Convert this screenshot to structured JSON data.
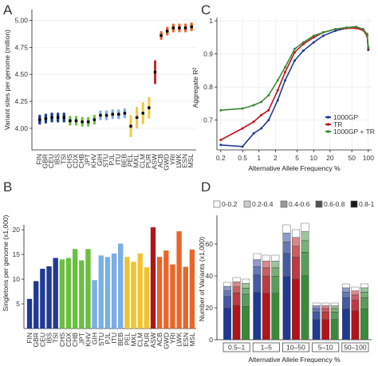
{
  "panels": {
    "A": {
      "letter": "A",
      "ylabel": "Variant sites per genome (million)",
      "yticks": [
        4.0,
        4.25,
        4.5,
        4.75,
        5.0
      ],
      "ytick_labels": [
        "4.00",
        "4.25",
        "4.50",
        "4.75",
        "5.00"
      ],
      "ylim": [
        3.8,
        5.1
      ],
      "populations": [
        "FIN",
        "GBR",
        "CEU",
        "IBS",
        "TSI",
        "CHS",
        "CDX",
        "CHB",
        "JPT",
        "KHV",
        "GIH",
        "STU",
        "PJL",
        "ITU",
        "BEB",
        "PEL",
        "MXL",
        "CLM",
        "PUR",
        "ASW",
        "ACB",
        "GWD",
        "YRI",
        "LWK",
        "ESN",
        "MSL"
      ],
      "groups": [
        {
          "color": "#1f3a93",
          "pops": [
            "FIN",
            "GBR",
            "CEU",
            "IBS",
            "TSI"
          ],
          "means": [
            4.08,
            4.09,
            4.1,
            4.1,
            4.1
          ]
        },
        {
          "color": "#6abf40",
          "pops": [
            "CHS",
            "CDX",
            "CHB",
            "JPT",
            "KHV"
          ],
          "means": [
            4.07,
            4.07,
            4.06,
            4.06,
            4.08
          ]
        },
        {
          "color": "#7aaee8",
          "pops": [
            "GIH",
            "STU",
            "PJL",
            "ITU",
            "BEB"
          ],
          "means": [
            4.12,
            4.12,
            4.13,
            4.13,
            4.14
          ]
        },
        {
          "color": "#f0c330",
          "pops": [
            "PEL",
            "MXL",
            "CLM",
            "PUR"
          ],
          "means": [
            4.02,
            4.1,
            4.14,
            4.19
          ]
        },
        {
          "color": "#b0141b",
          "pops": [
            "ASW"
          ],
          "means": [
            4.52
          ]
        },
        {
          "color": "#e8662a",
          "pops": [
            "ACB",
            "GWD",
            "YRI",
            "LWK",
            "ESN",
            "MSL"
          ],
          "means": [
            4.86,
            4.9,
            4.93,
            4.93,
            4.93,
            4.94
          ]
        }
      ]
    },
    "B": {
      "letter": "B",
      "ylabel": "Singletons per genome (x1,000)",
      "yticks": [
        5,
        10,
        15,
        20
      ],
      "ytick_labels": [
        "5",
        "10",
        "15",
        "20"
      ],
      "ylim": [
        0,
        21
      ],
      "categories": [
        "FIN",
        "GBR",
        "CEU",
        "IBS",
        "TSI",
        "CHS",
        "CDX",
        "CHB",
        "JPT",
        "KHV",
        "GIH",
        "STU",
        "PJL",
        "ITU",
        "BEB",
        "PEL",
        "MXL",
        "CLM",
        "PUR",
        "ASW",
        "ACB",
        "GWD",
        "YRI",
        "LWK",
        "ESN",
        "MSL"
      ],
      "values": [
        6.0,
        9.6,
        12.1,
        12.6,
        14.3,
        14.0,
        14.3,
        16.1,
        13.8,
        16.1,
        9.8,
        14.8,
        14.5,
        15.2,
        17.2,
        14.5,
        13.5,
        15.2,
        12.4,
        20.5,
        14.5,
        15.8,
        13.0,
        19.7,
        12.5,
        16.0
      ],
      "colors": [
        "#1f3a93",
        "#1f3a93",
        "#1f3a93",
        "#1f3a93",
        "#1f3a93",
        "#6abf40",
        "#6abf40",
        "#6abf40",
        "#6abf40",
        "#6abf40",
        "#7aaee8",
        "#7aaee8",
        "#7aaee8",
        "#7aaee8",
        "#7aaee8",
        "#f0c330",
        "#f0c330",
        "#f0c330",
        "#f0c330",
        "#b0141b",
        "#e8662a",
        "#e8662a",
        "#e8662a",
        "#e8662a",
        "#e8662a",
        "#e8662a"
      ]
    },
    "C": {
      "letter": "C",
      "ylabel": "Aggregate R²",
      "xlabel": "Alternative Allele Frequency %",
      "yticks": [
        0.7,
        0.8,
        0.9,
        1
      ],
      "ytick_labels": [
        "0.7",
        "0.8",
        "0.9",
        "1"
      ],
      "ylim": [
        0.61,
        1.01
      ],
      "xticks": [
        0.2,
        0.5,
        1,
        2,
        5,
        10,
        20,
        50,
        100
      ],
      "xtick_labels": [
        "0.2",
        "0.5",
        "1",
        "2",
        "5",
        "10",
        "20",
        "50",
        "100"
      ],
      "xlim": [
        0.17,
        115
      ],
      "x": [
        0.2,
        0.5,
        0.8,
        1.1,
        1.5,
        2.2,
        3.0,
        4.5,
        6.5,
        10,
        15,
        25,
        40,
        60,
        80,
        95,
        100
      ],
      "series": [
        {
          "name": "1000GP",
          "color": "#1f3a93",
          "values": [
            0.625,
            0.62,
            0.66,
            0.675,
            0.7,
            0.76,
            0.82,
            0.88,
            0.91,
            0.935,
            0.955,
            0.97,
            0.978,
            0.98,
            0.975,
            0.96,
            0.912
          ]
        },
        {
          "name": "TR",
          "color": "#c0131a",
          "values": [
            0.64,
            0.675,
            0.695,
            0.715,
            0.73,
            0.79,
            0.845,
            0.905,
            0.93,
            0.95,
            0.965,
            0.975,
            0.978,
            0.978,
            0.972,
            0.955,
            0.915
          ]
        },
        {
          "name": "1000GP + TR",
          "color": "#3a8a3a",
          "values": [
            0.73,
            0.735,
            0.745,
            0.755,
            0.775,
            0.82,
            0.86,
            0.915,
            0.935,
            0.955,
            0.965,
            0.975,
            0.98,
            0.982,
            0.975,
            0.96,
            0.92
          ]
        }
      ],
      "legend_position": "bottom-right"
    },
    "D": {
      "letter": "D",
      "ylabel": "Number of Variants (x1,000)",
      "xlabel": "Alternative Allele Frequency %",
      "yticks": [
        0,
        20,
        40,
        60
      ],
      "ytick_labels": [
        "0",
        "20",
        "40",
        "60"
      ],
      "ylim": [
        0,
        78
      ],
      "legend": [
        {
          "label": "0-0.2",
          "color": "#ffffff"
        },
        {
          "label": "0.2-0.4",
          "color": "#cccccc"
        },
        {
          "label": "0.4-0.6",
          "color": "#999999"
        },
        {
          "label": "0.6-0.8",
          "color": "#555555"
        },
        {
          "label": "0.8-1",
          "color": "#1a1a1a"
        }
      ],
      "groups": [
        "0.5–1",
        "1–5",
        "10–50",
        "5–10",
        "50–100"
      ],
      "series_colors": [
        "#1f3a93",
        "#b0141b",
        "#3a8a3a"
      ],
      "totals": [
        [
          36,
          39,
          38
        ],
        [
          54,
          53,
          53
        ],
        [
          72,
          69,
          73
        ],
        [
          23,
          23,
          23
        ],
        [
          35,
          33,
          35
        ]
      ],
      "stack_fractions": [
        0.55,
        0.2,
        0.1,
        0.08,
        0.07
      ]
    }
  }
}
